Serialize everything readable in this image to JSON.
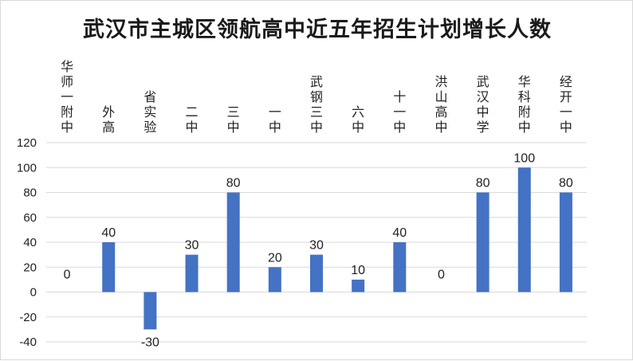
{
  "chart_data": {
    "type": "bar",
    "title": "武汉市主城区领航高中近五年招生计划增长人数",
    "categories": [
      "华师一附中",
      "外高",
      "省实验",
      "二中",
      "三中",
      "一中",
      "武钢三中",
      "六中",
      "十一中",
      "洪山高中",
      "武汉中学",
      "华科附中",
      "经开一中"
    ],
    "values": [
      0,
      40,
      -30,
      30,
      80,
      20,
      30,
      10,
      40,
      0,
      80,
      100,
      80
    ],
    "data_labels": [
      "0",
      "40",
      "-30",
      "30",
      "80",
      "20",
      "30",
      "10",
      "40",
      "0",
      "80",
      "100",
      "80"
    ],
    "yticks": [
      "120",
      "100",
      "80",
      "60",
      "40",
      "20",
      "0",
      "-20",
      "-40"
    ],
    "ylim": [
      -40,
      120
    ],
    "xlabel": "",
    "ylabel": "",
    "grid": true,
    "legend": "none",
    "category_label_position": "top",
    "bar_color": "#4472c4",
    "grid_color": "#d9d9d9"
  }
}
